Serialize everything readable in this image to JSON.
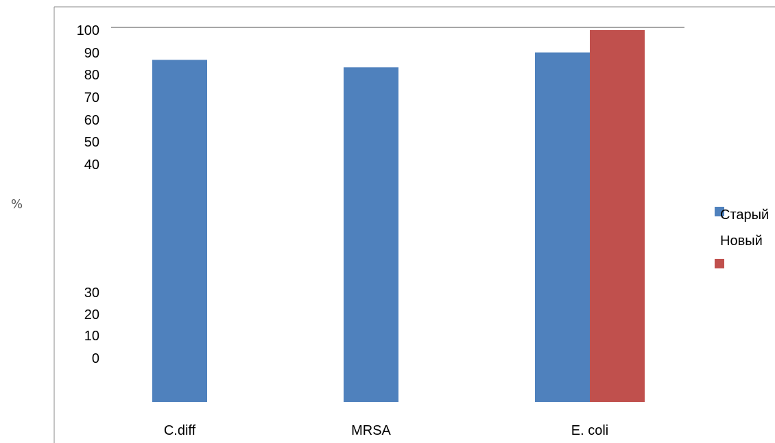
{
  "chart_data": {
    "type": "bar",
    "categories": [
      "C.diff",
      "MRSA",
      "E. coli"
    ],
    "series": [
      {
        "name": "Старый",
        "values": [
          92,
          90,
          94
        ],
        "color": "#4f81bd"
      },
      {
        "name": "Новый",
        "values": [
          null,
          null,
          100
        ],
        "color": "#c0504d"
      }
    ],
    "ylabel": "%",
    "y_tick_labels": [
      "100",
      "90",
      "80",
      "70",
      "60",
      "50",
      "40",
      "30",
      "20",
      "10",
      "0"
    ],
    "ylim": [
      0,
      100
    ],
    "legend_position": "right",
    "grid": false
  }
}
